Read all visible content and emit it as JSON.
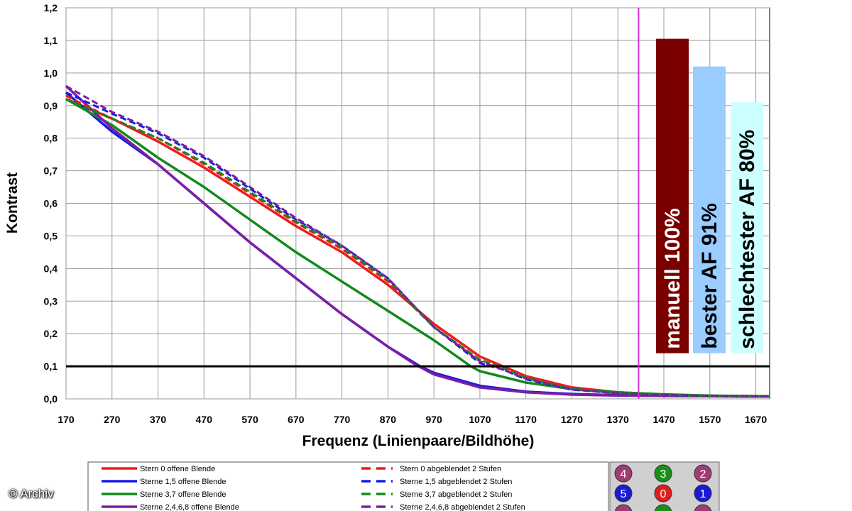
{
  "copyright": "© Archiv",
  "colors": {
    "red": "#ee1c1c",
    "blue": "#1a1ae6",
    "green": "#138a1c",
    "purple": "#7b1fa2",
    "threshold": "#000000",
    "magenta_line": "#d12fd6",
    "bar_manuell": "#7a0000",
    "bar_bester": "#99ccff",
    "bar_schlechtester": "#ccffff",
    "marker_purple": "#9e3d73",
    "marker_green": "#1a8f1a",
    "marker_blue": "#1a1ad6",
    "marker_red": "#e01c1c"
  },
  "chart_data": {
    "type": "line",
    "xlabel": "Frequenz (Linienpaare/Bildhöhe)",
    "ylabel": "Kontrast",
    "xlim": [
      170,
      1700
    ],
    "ylim": [
      0,
      1.2
    ],
    "xticks": [
      "170",
      "270",
      "370",
      "470",
      "570",
      "670",
      "770",
      "870",
      "970",
      "1070",
      "1170",
      "1270",
      "1370",
      "1470",
      "1570",
      "1670"
    ],
    "yticks": [
      "0,0",
      "0,1",
      "0,2",
      "0,3",
      "0,4",
      "0,5",
      "0,6",
      "0,7",
      "0,8",
      "0,9",
      "1,0",
      "1,1",
      "1,2"
    ],
    "grid": true,
    "threshold_line": 0.1,
    "vertical_line_x": 1415,
    "series": [
      {
        "name": "Stern 0 offene Blende",
        "color": "red",
        "dash": false,
        "x": [
          170,
          270,
          370,
          470,
          570,
          670,
          770,
          870,
          970,
          1070,
          1120,
          1170,
          1270,
          1370,
          1470,
          1570,
          1700
        ],
        "y": [
          0.92,
          0.86,
          0.79,
          0.71,
          0.62,
          0.53,
          0.45,
          0.35,
          0.23,
          0.13,
          0.1,
          0.07,
          0.035,
          0.02,
          0.013,
          0.009,
          0.007
        ]
      },
      {
        "name": "Sterne 1,5 offene Blende",
        "color": "blue",
        "dash": false,
        "x": [
          170,
          270,
          370,
          470,
          570,
          670,
          770,
          870,
          940,
          970,
          1070,
          1170,
          1270,
          1370,
          1470,
          1570,
          1700
        ],
        "y": [
          0.94,
          0.82,
          0.72,
          0.6,
          0.48,
          0.37,
          0.26,
          0.16,
          0.1,
          0.08,
          0.04,
          0.022,
          0.015,
          0.011,
          0.009,
          0.008,
          0.007
        ]
      },
      {
        "name": "Sterne 3,7 offene Blende",
        "color": "green",
        "dash": false,
        "x": [
          170,
          270,
          370,
          470,
          570,
          670,
          770,
          870,
          970,
          1050,
          1070,
          1170,
          1270,
          1370,
          1470,
          1570,
          1700
        ],
        "y": [
          0.92,
          0.84,
          0.74,
          0.65,
          0.55,
          0.45,
          0.36,
          0.27,
          0.18,
          0.1,
          0.085,
          0.05,
          0.03,
          0.02,
          0.014,
          0.01,
          0.008
        ]
      },
      {
        "name": "Sterne 2,4,6,8 offene Blende",
        "color": "purple",
        "dash": false,
        "x": [
          170,
          270,
          370,
          470,
          570,
          670,
          770,
          870,
          930,
          970,
          1070,
          1170,
          1270,
          1370,
          1470,
          1570,
          1700
        ],
        "y": [
          0.96,
          0.83,
          0.72,
          0.6,
          0.48,
          0.37,
          0.26,
          0.16,
          0.105,
          0.075,
          0.035,
          0.02,
          0.013,
          0.01,
          0.009,
          0.008,
          0.007
        ]
      },
      {
        "name": "Stern 0 abgeblendet 2 Stufen",
        "color": "red",
        "dash": true,
        "x": [
          170,
          270,
          370,
          470,
          570,
          670,
          770,
          870,
          970,
          1070,
          1120,
          1170,
          1270,
          1370,
          1470,
          1570,
          1700
        ],
        "y": [
          0.93,
          0.86,
          0.8,
          0.72,
          0.63,
          0.54,
          0.46,
          0.36,
          0.22,
          0.12,
          0.095,
          0.065,
          0.03,
          0.018,
          0.012,
          0.009,
          0.007
        ]
      },
      {
        "name": "Sterne 1,5 abgeblendet 2 Stufen",
        "color": "blue",
        "dash": true,
        "x": [
          170,
          270,
          370,
          470,
          570,
          670,
          770,
          870,
          970,
          1070,
          1120,
          1170,
          1270,
          1370,
          1470,
          1570,
          1700
        ],
        "y": [
          0.94,
          0.875,
          0.815,
          0.74,
          0.645,
          0.55,
          0.47,
          0.37,
          0.22,
          0.11,
          0.09,
          0.06,
          0.028,
          0.017,
          0.012,
          0.009,
          0.007
        ]
      },
      {
        "name": "Sterne 3,7 abgeblendet 2 Stufen",
        "color": "green",
        "dash": true,
        "x": [
          170,
          270,
          370,
          470,
          570,
          670,
          770,
          870,
          970,
          1070,
          1120,
          1170,
          1270,
          1370,
          1470,
          1570,
          1700
        ],
        "y": [
          0.92,
          0.86,
          0.8,
          0.725,
          0.635,
          0.545,
          0.465,
          0.365,
          0.22,
          0.12,
          0.095,
          0.065,
          0.03,
          0.018,
          0.012,
          0.009,
          0.007
        ]
      },
      {
        "name": "Sterne 2,4,6,8 abgeblendet 2 Stufen",
        "color": "purple",
        "dash": true,
        "x": [
          170,
          270,
          370,
          470,
          570,
          670,
          770,
          870,
          970,
          1070,
          1120,
          1170,
          1270,
          1370,
          1470,
          1570,
          1700
        ],
        "y": [
          0.96,
          0.88,
          0.82,
          0.745,
          0.65,
          0.555,
          0.47,
          0.37,
          0.22,
          0.115,
          0.09,
          0.062,
          0.029,
          0.017,
          0.012,
          0.009,
          0.007
        ]
      }
    ],
    "bars": [
      {
        "label": "manuell 100%",
        "value": 1.105,
        "color": "bar_manuell",
        "text_color": "#ffffff"
      },
      {
        "label": "bester AF 91%",
        "value": 1.02,
        "color": "bar_bester",
        "text_color": "#000000"
      },
      {
        "label": "schlechtester AF 80%",
        "value": 0.91,
        "color": "bar_schlechtester",
        "text_color": "#000000"
      }
    ]
  },
  "legend": {
    "left": [
      {
        "label": "Stern 0 offene Blende",
        "color": "red"
      },
      {
        "label": "Sterne 1,5 offene Blende",
        "color": "blue"
      },
      {
        "label": "Sterne 3,7 offene Blende",
        "color": "green"
      },
      {
        "label": "Sterne 2,4,6,8 offene Blende",
        "color": "purple"
      }
    ],
    "right": [
      {
        "label": "Stern 0 abgeblendet 2 Stufen",
        "color": "red"
      },
      {
        "label": "Sterne 1,5 abgeblendet 2 Stufen",
        "color": "blue"
      },
      {
        "label": "Sterne 3,7 abgeblendet 2 Stufen",
        "color": "green"
      },
      {
        "label": "Sterne 2,4,6,8 abgeblendet 2 Stufen",
        "color": "purple"
      }
    ]
  },
  "markers": [
    {
      "label": "4",
      "color": "marker_purple"
    },
    {
      "label": "3",
      "color": "marker_green"
    },
    {
      "label": "2",
      "color": "marker_purple"
    },
    {
      "label": "5",
      "color": "marker_blue"
    },
    {
      "label": "0",
      "color": "marker_red"
    },
    {
      "label": "1",
      "color": "marker_blue"
    },
    {
      "label": "",
      "color": "marker_purple"
    },
    {
      "label": "",
      "color": "marker_green"
    },
    {
      "label": "",
      "color": "marker_purple"
    }
  ]
}
